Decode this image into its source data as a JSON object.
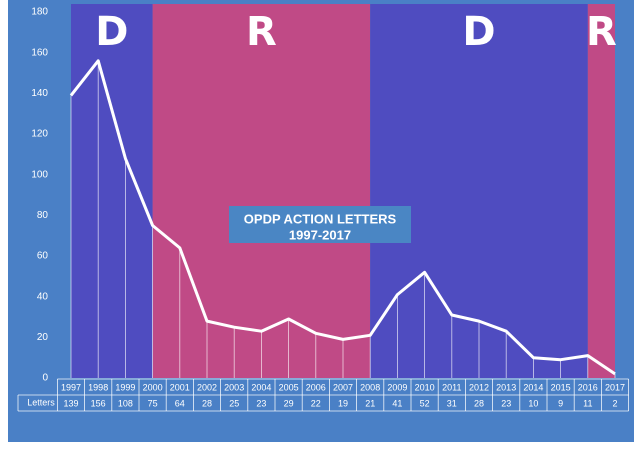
{
  "colors": {
    "background": "#4a80c6",
    "democrat": "#4f4cc0",
    "republican": "#c04a86",
    "line": "#ffffff",
    "title_box": "#4a86c4"
  },
  "chart_data": {
    "type": "line",
    "title": "OPDP ACTION LETTERS",
    "subtitle": "1997-2017",
    "x": [
      "1997",
      "1998",
      "1999",
      "2000",
      "2001",
      "2002",
      "2003",
      "2004",
      "2005",
      "2006",
      "2007",
      "2008",
      "2009",
      "2010",
      "2011",
      "2012",
      "2013",
      "2014",
      "2015",
      "2016",
      "2017"
    ],
    "series": [
      {
        "name": "Letters",
        "values": [
          139,
          156,
          108,
          75,
          64,
          28,
          25,
          23,
          29,
          22,
          19,
          21,
          41,
          52,
          31,
          28,
          23,
          10,
          9,
          11,
          2
        ]
      }
    ],
    "ylim": [
      0,
      180
    ],
    "yticks": [
      0,
      20,
      40,
      60,
      80,
      100,
      120,
      140,
      160,
      180
    ],
    "grid": false,
    "shaded_periods": [
      {
        "label": "D",
        "party": "democrat",
        "from": "1997",
        "to": "2000"
      },
      {
        "label": "R",
        "party": "republican",
        "from": "2000",
        "to": "2008"
      },
      {
        "label": "D",
        "party": "democrat",
        "from": "2008",
        "to": "2016"
      },
      {
        "label": "R",
        "party": "republican",
        "from": "2016",
        "to": "2017"
      }
    ],
    "table": {
      "row_label": "Letters"
    }
  }
}
